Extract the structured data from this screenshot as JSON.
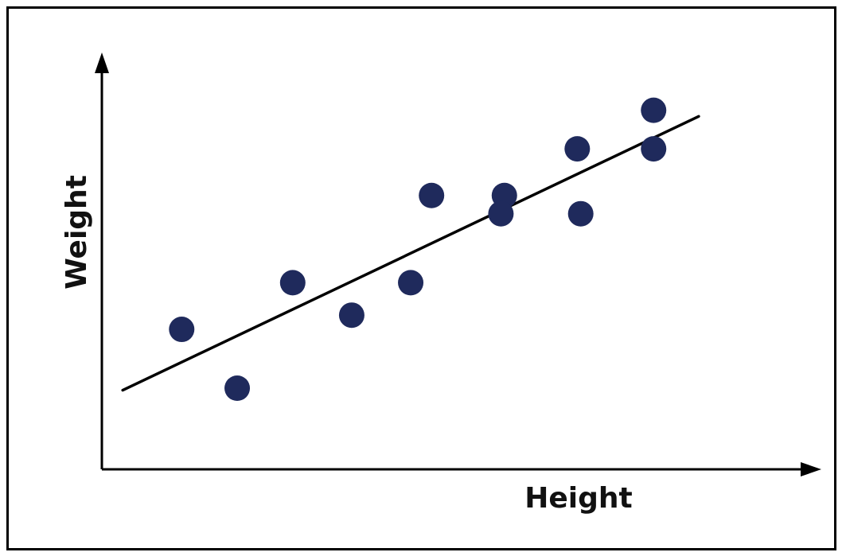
{
  "chart_data": {
    "type": "scatter",
    "title": "",
    "xlabel": "Height",
    "ylabel": "Weight",
    "xlim": [
      0,
      10
    ],
    "ylim": [
      0,
      10
    ],
    "grid": false,
    "legend": "none",
    "axis_ticks": false,
    "colors": {
      "points": "#1f2a5c",
      "line": "#000000",
      "axis": "#000000",
      "frame": "#000000"
    },
    "series": [
      {
        "values": [
          {
            "x": 1.15,
            "y": 3.45
          },
          {
            "x": 1.95,
            "y": 2.0
          },
          {
            "x": 2.75,
            "y": 4.6
          },
          {
            "x": 3.6,
            "y": 3.8
          },
          {
            "x": 4.45,
            "y": 4.6
          },
          {
            "x": 4.75,
            "y": 6.75
          },
          {
            "x": 5.8,
            "y": 6.75
          },
          {
            "x": 5.75,
            "y": 6.3
          },
          {
            "x": 6.85,
            "y": 7.9
          },
          {
            "x": 6.9,
            "y": 6.3
          },
          {
            "x": 7.95,
            "y": 8.85
          },
          {
            "x": 7.95,
            "y": 7.9
          }
        ]
      }
    ],
    "trend_line": {
      "x": [
        0.3,
        8.6
      ],
      "y": [
        1.95,
        8.7
      ]
    }
  }
}
